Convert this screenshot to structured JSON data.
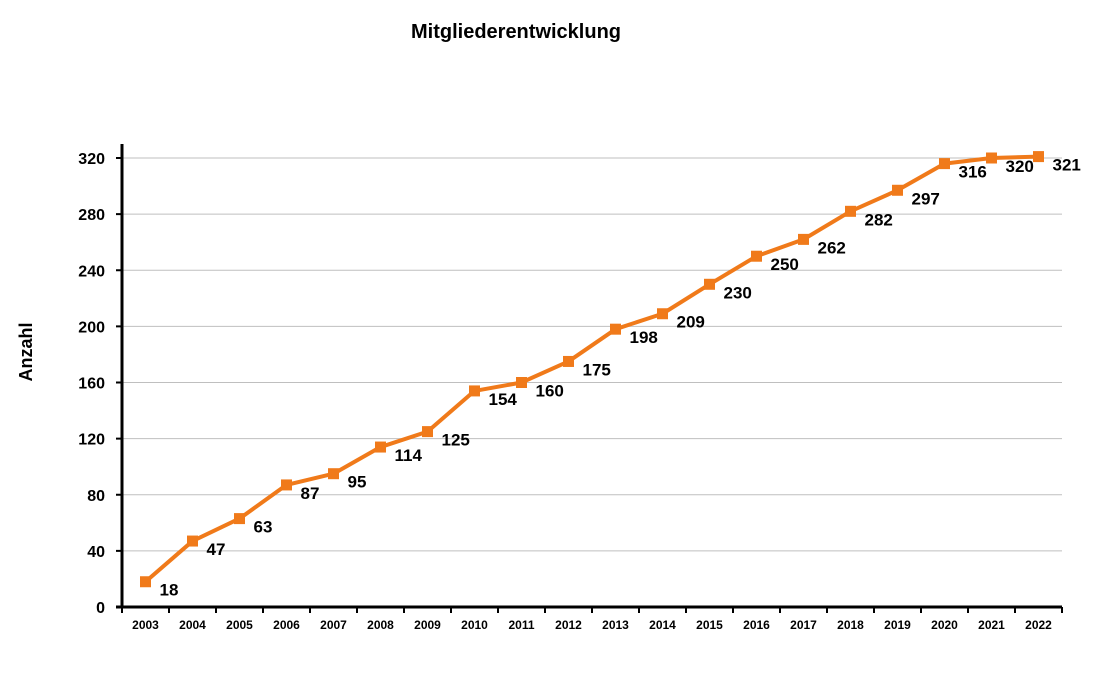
{
  "chart_data": {
    "type": "line",
    "title": "Mitgliederentwicklung",
    "xlabel": "",
    "ylabel": "Anzahl",
    "categories": [
      "2003",
      "2004",
      "2005",
      "2006",
      "2007",
      "2008",
      "2009",
      "2010",
      "2011",
      "2012",
      "2013",
      "2014",
      "2015",
      "2016",
      "2017",
      "2018",
      "2019",
      "2020",
      "2021",
      "2022"
    ],
    "series": [
      {
        "values": [
          18,
          47,
          63,
          87,
          95,
          114,
          125,
          154,
          160,
          175,
          198,
          209,
          230,
          250,
          262,
          282,
          297,
          316,
          320,
          321
        ]
      }
    ],
    "ylim": [
      0,
      320
    ],
    "yticks": [
      0,
      40,
      80,
      120,
      160,
      200,
      240,
      280,
      320
    ],
    "grid": true,
    "legend": "none",
    "colors": {
      "line": "#F07A1A",
      "marker": "#F07A1A",
      "grid": "#BFBFBF",
      "axis": "#000000"
    }
  }
}
